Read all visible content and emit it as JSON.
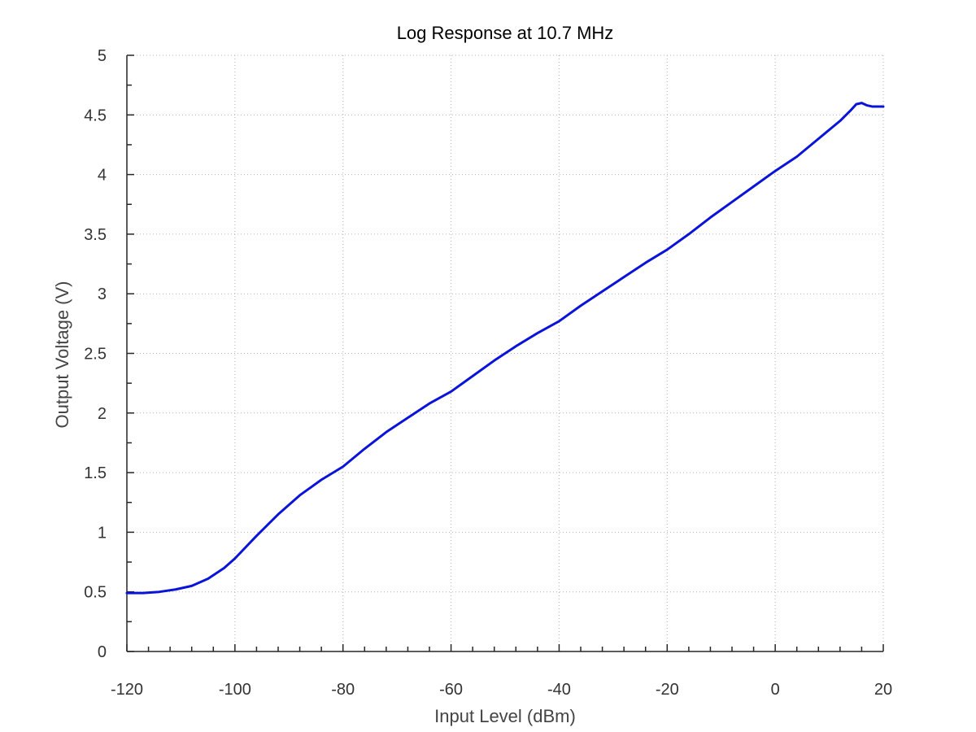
{
  "chart_data": {
    "type": "line",
    "title": "Log Response at 10.7 MHz",
    "xlabel": "Input Level (dBm)",
    "ylabel": "Output Voltage (V)",
    "xlim": [
      -120,
      20
    ],
    "ylim": [
      0,
      5
    ],
    "x_ticks": [
      -120,
      -100,
      -80,
      -60,
      -40,
      -20,
      0,
      20
    ],
    "y_ticks": [
      0,
      0.5,
      1,
      1.5,
      2,
      2.5,
      3,
      3.5,
      4,
      4.5,
      5
    ],
    "x_tick_labels": [
      "-120",
      "-100",
      "-80",
      "-60",
      "-40",
      "-20",
      "0",
      "20"
    ],
    "y_tick_labels": [
      "0",
      "0.5",
      "1",
      "1.5",
      "2",
      "2.5",
      "3",
      "3.5",
      "4",
      "4.5",
      "5"
    ],
    "x_minor_step": 4,
    "y_minor_step": 0.25,
    "grid": true,
    "series_color": "#0a14d8",
    "series": [
      {
        "x": [
          -120,
          -117,
          -114,
          -111,
          -108,
          -105,
          -102,
          -100,
          -96,
          -92,
          -88,
          -84,
          -80,
          -76,
          -72,
          -68,
          -64,
          -60,
          -56,
          -52,
          -48,
          -44,
          -40,
          -36,
          -32,
          -28,
          -24,
          -20,
          -16,
          -12,
          -8,
          -4,
          0,
          4,
          8,
          12,
          14,
          15,
          16,
          17,
          18,
          20
        ],
        "y": [
          0.49,
          0.49,
          0.5,
          0.52,
          0.55,
          0.61,
          0.7,
          0.78,
          0.97,
          1.15,
          1.31,
          1.44,
          1.55,
          1.7,
          1.84,
          1.96,
          2.08,
          2.18,
          2.31,
          2.44,
          2.56,
          2.67,
          2.77,
          2.9,
          3.02,
          3.14,
          3.26,
          3.37,
          3.5,
          3.64,
          3.77,
          3.9,
          4.03,
          4.15,
          4.3,
          4.45,
          4.54,
          4.59,
          4.6,
          4.58,
          4.57,
          4.57
        ]
      }
    ]
  }
}
